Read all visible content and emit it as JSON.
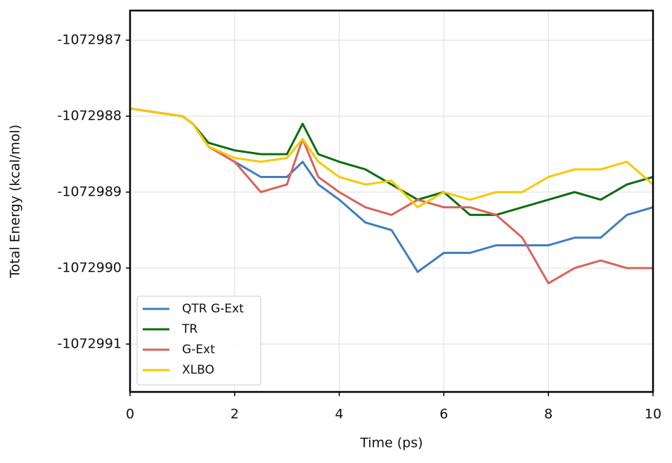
{
  "chart_data": {
    "type": "line",
    "xlabel": "Time (ps)",
    "ylabel": "Total Energy (kcal/mol)",
    "x": [
      0,
      0.5,
      1,
      1.2,
      1.5,
      2,
      2.5,
      3,
      3.3,
      3.6,
      4,
      4.5,
      5,
      5.5,
      6,
      6.5,
      7,
      7.5,
      8,
      8.5,
      9,
      9.5,
      10
    ],
    "series": [
      {
        "name": "QTR G-Ext",
        "color": "#3f7dbf",
        "values": [
          -1072987.9,
          -1072987.95,
          -1072988.0,
          -1072988.1,
          -1072988.4,
          -1072988.6,
          -1072988.8,
          -1072988.8,
          -1072988.6,
          -1072988.9,
          -1072989.1,
          -1072989.4,
          -1072989.5,
          -1072990.05,
          -1072989.8,
          -1072989.8,
          -1072989.7,
          -1072989.7,
          -1072989.7,
          -1072989.6,
          -1072989.6,
          -1072989.3,
          -1072989.2
        ]
      },
      {
        "name": "TR",
        "color": "#0a6e0a",
        "values": [
          -1072987.9,
          -1072987.95,
          -1072988.0,
          -1072988.1,
          -1072988.35,
          -1072988.45,
          -1072988.5,
          -1072988.5,
          -1072988.1,
          -1072988.5,
          -1072988.6,
          -1072988.7,
          -1072988.9,
          -1072989.1,
          -1072989.0,
          -1072989.3,
          -1072989.3,
          -1072989.2,
          -1072989.1,
          -1072989.0,
          -1072989.1,
          -1072988.9,
          -1072988.8
        ]
      },
      {
        "name": "G-Ext",
        "color": "#d9635a",
        "values": [
          -1072987.9,
          -1072987.95,
          -1072988.0,
          -1072988.1,
          -1072988.4,
          -1072988.6,
          -1072989.0,
          -1072988.9,
          -1072988.3,
          -1072988.8,
          -1072989.0,
          -1072989.2,
          -1072989.3,
          -1072989.1,
          -1072989.2,
          -1072989.2,
          -1072989.3,
          -1072989.6,
          -1072990.2,
          -1072990.0,
          -1072989.9,
          -1072990.0,
          -1072990.0
        ]
      },
      {
        "name": "XLBO",
        "color": "#f7c800",
        "values": [
          -1072987.9,
          -1072987.95,
          -1072988.0,
          -1072988.1,
          -1072988.4,
          -1072988.55,
          -1072988.6,
          -1072988.55,
          -1072988.3,
          -1072988.6,
          -1072988.8,
          -1072988.9,
          -1072988.85,
          -1072989.2,
          -1072989.0,
          -1072989.1,
          -1072989.0,
          -1072989.0,
          -1072988.8,
          -1072988.7,
          -1072988.7,
          -1072988.6,
          -1072988.9
        ]
      }
    ],
    "xlim": [
      0,
      10
    ],
    "xticks": [
      0,
      2,
      4,
      6,
      8,
      10
    ],
    "ylim": [
      -1072991.63,
      -1072986.61
    ],
    "yticks": [
      -1072991,
      -1072990,
      -1072989,
      -1072988,
      -1072987
    ],
    "grid": true,
    "legend": "lower-left"
  }
}
